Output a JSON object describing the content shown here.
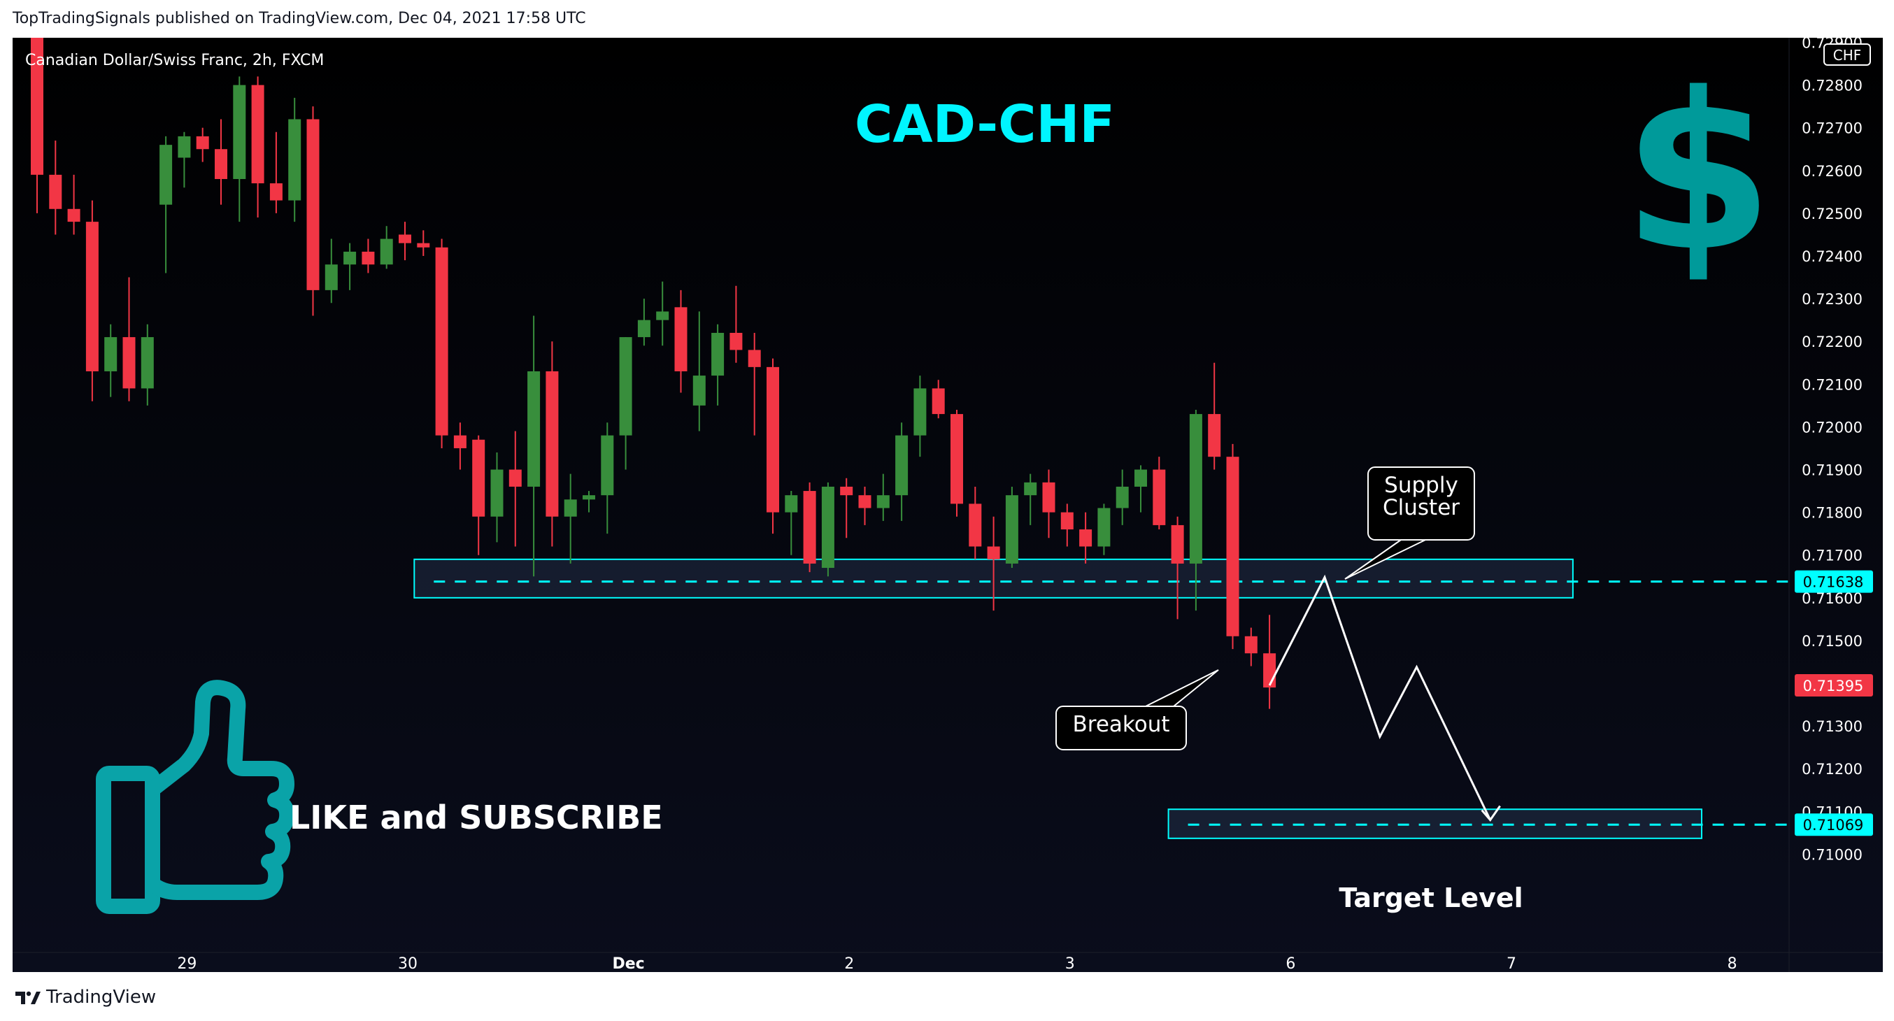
{
  "header": {
    "published_line": "TopTradingSignals published on TradingView.com, Dec 04, 2021 17:58 UTC"
  },
  "footer": {
    "logo_text": "TradingView"
  },
  "colors": {
    "up": "#388e3c",
    "down": "#f23645",
    "cyan": "#00ffff",
    "teal_icon": "#009a9a",
    "background": "#000000"
  },
  "chart_data": {
    "type": "candlestick",
    "symbol_line": "Canadian Dollar/Swiss Franc, 2h, FXCM",
    "currency_unit": "CHF",
    "title": "CAD-CHF",
    "ylim": [
      0.71,
      0.729
    ],
    "y_ticks": [
      "0.72900",
      "0.72800",
      "0.72700",
      "0.72600",
      "0.72500",
      "0.72400",
      "0.72300",
      "0.72200",
      "0.72100",
      "0.72000",
      "0.71900",
      "0.71800",
      "0.71700",
      "0.71600",
      "0.71500",
      "0.71300",
      "0.71200",
      "0.71100",
      "0.71000"
    ],
    "x_ticks": [
      {
        "label": "29",
        "index": 8
      },
      {
        "label": "30",
        "index": 20
      },
      {
        "label": "Dec",
        "index": 32
      },
      {
        "label": "2",
        "index": 44
      },
      {
        "label": "3",
        "index": 56
      },
      {
        "label": "6",
        "index": 68
      },
      {
        "label": "7",
        "index": 80
      },
      {
        "label": "8",
        "index": 92
      }
    ],
    "candles": [
      {
        "o": 0.7295,
        "h": 0.7298,
        "l": 0.725,
        "c": 0.7259
      },
      {
        "o": 0.7259,
        "h": 0.7267,
        "l": 0.7245,
        "c": 0.7251
      },
      {
        "o": 0.7251,
        "h": 0.7259,
        "l": 0.7245,
        "c": 0.7248
      },
      {
        "o": 0.7248,
        "h": 0.7253,
        "l": 0.7206,
        "c": 0.7213
      },
      {
        "o": 0.7213,
        "h": 0.7224,
        "l": 0.7207,
        "c": 0.7221
      },
      {
        "o": 0.7221,
        "h": 0.7235,
        "l": 0.7206,
        "c": 0.7209
      },
      {
        "o": 0.7209,
        "h": 0.7224,
        "l": 0.7205,
        "c": 0.7221
      },
      {
        "o": 0.7252,
        "h": 0.7268,
        "l": 0.7236,
        "c": 0.7266
      },
      {
        "o": 0.7263,
        "h": 0.7269,
        "l": 0.7256,
        "c": 0.7268
      },
      {
        "o": 0.7268,
        "h": 0.727,
        "l": 0.7262,
        "c": 0.7265
      },
      {
        "o": 0.7265,
        "h": 0.7272,
        "l": 0.7252,
        "c": 0.7258
      },
      {
        "o": 0.7258,
        "h": 0.7282,
        "l": 0.7248,
        "c": 0.728
      },
      {
        "o": 0.728,
        "h": 0.7282,
        "l": 0.7249,
        "c": 0.7257
      },
      {
        "o": 0.7257,
        "h": 0.7269,
        "l": 0.725,
        "c": 0.7253
      },
      {
        "o": 0.7253,
        "h": 0.7277,
        "l": 0.7248,
        "c": 0.7272
      },
      {
        "o": 0.7272,
        "h": 0.7275,
        "l": 0.7226,
        "c": 0.7232
      },
      {
        "o": 0.7232,
        "h": 0.7244,
        "l": 0.7229,
        "c": 0.7238
      },
      {
        "o": 0.7238,
        "h": 0.7243,
        "l": 0.7232,
        "c": 0.7241
      },
      {
        "o": 0.7241,
        "h": 0.7244,
        "l": 0.7236,
        "c": 0.7238
      },
      {
        "o": 0.7238,
        "h": 0.7247,
        "l": 0.7237,
        "c": 0.7244
      },
      {
        "o": 0.7245,
        "h": 0.7248,
        "l": 0.7239,
        "c": 0.7243
      },
      {
        "o": 0.7243,
        "h": 0.7246,
        "l": 0.724,
        "c": 0.7242
      },
      {
        "o": 0.7242,
        "h": 0.7244,
        "l": 0.7195,
        "c": 0.7198
      },
      {
        "o": 0.7198,
        "h": 0.7201,
        "l": 0.719,
        "c": 0.7195
      },
      {
        "o": 0.7197,
        "h": 0.7198,
        "l": 0.717,
        "c": 0.7179
      },
      {
        "o": 0.7179,
        "h": 0.7194,
        "l": 0.7173,
        "c": 0.719
      },
      {
        "o": 0.719,
        "h": 0.7199,
        "l": 0.7172,
        "c": 0.7186
      },
      {
        "o": 0.7186,
        "h": 0.7226,
        "l": 0.7165,
        "c": 0.7213
      },
      {
        "o": 0.7213,
        "h": 0.722,
        "l": 0.7172,
        "c": 0.7179
      },
      {
        "o": 0.7179,
        "h": 0.7189,
        "l": 0.7168,
        "c": 0.7183
      },
      {
        "o": 0.7183,
        "h": 0.7185,
        "l": 0.718,
        "c": 0.7184
      },
      {
        "o": 0.7184,
        "h": 0.7201,
        "l": 0.7175,
        "c": 0.7198
      },
      {
        "o": 0.7198,
        "h": 0.7221,
        "l": 0.719,
        "c": 0.7221
      },
      {
        "o": 0.7221,
        "h": 0.723,
        "l": 0.7219,
        "c": 0.7225
      },
      {
        "o": 0.7225,
        "h": 0.7234,
        "l": 0.7219,
        "c": 0.7227
      },
      {
        "o": 0.7228,
        "h": 0.7232,
        "l": 0.7208,
        "c": 0.7213
      },
      {
        "o": 0.7205,
        "h": 0.7227,
        "l": 0.7199,
        "c": 0.7212
      },
      {
        "o": 0.7212,
        "h": 0.7224,
        "l": 0.7205,
        "c": 0.7222
      },
      {
        "o": 0.7222,
        "h": 0.7233,
        "l": 0.7215,
        "c": 0.7218
      },
      {
        "o": 0.7218,
        "h": 0.7222,
        "l": 0.7198,
        "c": 0.7214
      },
      {
        "o": 0.7214,
        "h": 0.7216,
        "l": 0.7175,
        "c": 0.718
      },
      {
        "o": 0.718,
        "h": 0.7185,
        "l": 0.717,
        "c": 0.7184
      },
      {
        "o": 0.7185,
        "h": 0.7187,
        "l": 0.7166,
        "c": 0.7168
      },
      {
        "o": 0.7167,
        "h": 0.7187,
        "l": 0.7165,
        "c": 0.7186
      },
      {
        "o": 0.7186,
        "h": 0.7188,
        "l": 0.7174,
        "c": 0.7184
      },
      {
        "o": 0.7184,
        "h": 0.7186,
        "l": 0.7177,
        "c": 0.7181
      },
      {
        "o": 0.7181,
        "h": 0.7189,
        "l": 0.7178,
        "c": 0.7184
      },
      {
        "o": 0.7184,
        "h": 0.7201,
        "l": 0.7178,
        "c": 0.7198
      },
      {
        "o": 0.7198,
        "h": 0.7212,
        "l": 0.7193,
        "c": 0.7209
      },
      {
        "o": 0.7209,
        "h": 0.7211,
        "l": 0.7202,
        "c": 0.7203
      },
      {
        "o": 0.7203,
        "h": 0.7204,
        "l": 0.7179,
        "c": 0.7182
      },
      {
        "o": 0.7182,
        "h": 0.7186,
        "l": 0.7169,
        "c": 0.7172
      },
      {
        "o": 0.7172,
        "h": 0.7179,
        "l": 0.7157,
        "c": 0.7169
      },
      {
        "o": 0.7168,
        "h": 0.7186,
        "l": 0.7167,
        "c": 0.7184
      },
      {
        "o": 0.7184,
        "h": 0.7189,
        "l": 0.7177,
        "c": 0.7187
      },
      {
        "o": 0.7187,
        "h": 0.719,
        "l": 0.7174,
        "c": 0.718
      },
      {
        "o": 0.718,
        "h": 0.7182,
        "l": 0.7172,
        "c": 0.7176
      },
      {
        "o": 0.7176,
        "h": 0.718,
        "l": 0.7168,
        "c": 0.7172
      },
      {
        "o": 0.7172,
        "h": 0.7182,
        "l": 0.717,
        "c": 0.7181
      },
      {
        "o": 0.7181,
        "h": 0.719,
        "l": 0.7177,
        "c": 0.7186
      },
      {
        "o": 0.7186,
        "h": 0.7191,
        "l": 0.718,
        "c": 0.719
      },
      {
        "o": 0.719,
        "h": 0.7193,
        "l": 0.7176,
        "c": 0.7177
      },
      {
        "o": 0.7177,
        "h": 0.7179,
        "l": 0.7155,
        "c": 0.7168
      },
      {
        "o": 0.7168,
        "h": 0.7204,
        "l": 0.7157,
        "c": 0.7203
      },
      {
        "o": 0.7203,
        "h": 0.7215,
        "l": 0.719,
        "c": 0.7193
      },
      {
        "o": 0.7193,
        "h": 0.7196,
        "l": 0.7148,
        "c": 0.7151
      },
      {
        "o": 0.7151,
        "h": 0.7153,
        "l": 0.7144,
        "c": 0.7147
      },
      {
        "o": 0.7147,
        "h": 0.7156,
        "l": 0.7134,
        "c": 0.7139
      }
    ],
    "levels": [
      {
        "name": "supply",
        "price": 0.71638,
        "label": "0.71638",
        "band": [
          0.716,
          0.7169
        ],
        "band_index": [
          21,
          83
        ]
      },
      {
        "name": "target",
        "price": 0.71069,
        "label": "0.71069",
        "band": [
          0.71037,
          0.71105
        ],
        "band_index": [
          62,
          90
        ]
      }
    ],
    "last_price": {
      "value": 0.71395,
      "label": "0.71395"
    },
    "projection_path": [
      {
        "index": 67,
        "price": 0.71395
      },
      {
        "index": 70,
        "price": 0.71648
      },
      {
        "index": 73,
        "price": 0.71275
      },
      {
        "index": 75,
        "price": 0.71438
      },
      {
        "index": 79,
        "price": 0.7108
      }
    ],
    "annotations": {
      "supply_cluster": "Supply\nCluster",
      "supply_line1": "Supply",
      "supply_line2": "Cluster",
      "breakout": "Breakout",
      "target": "Target Level",
      "like_subscribe": "LIKE and SUBSCRIBE",
      "dollar_symbol": "$"
    }
  }
}
